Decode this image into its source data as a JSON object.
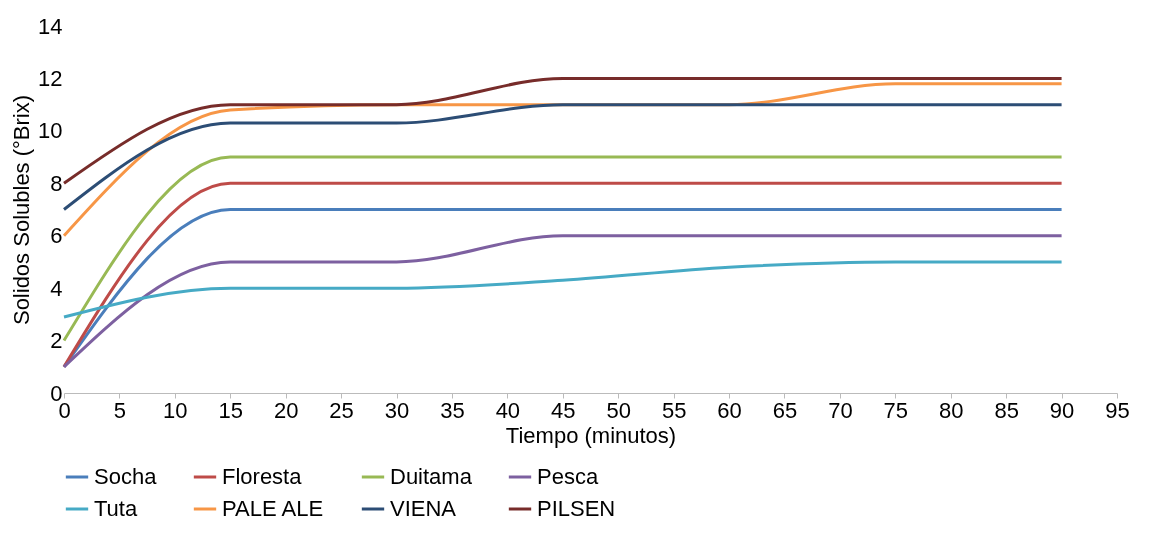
{
  "chart_data": {
    "type": "line",
    "xlabel": "Tiempo (minutos)",
    "ylabel": "Solidos Solubles (°Brix)",
    "x": [
      0,
      15,
      30,
      45,
      60,
      75,
      90
    ],
    "xlim": [
      0,
      95
    ],
    "xticks": [
      0,
      5,
      10,
      15,
      20,
      25,
      30,
      35,
      40,
      45,
      50,
      55,
      60,
      65,
      70,
      75,
      80,
      85,
      90,
      95
    ],
    "ylim": [
      0,
      14
    ],
    "yticks": [
      0,
      2,
      4,
      6,
      8,
      10,
      12,
      14
    ],
    "grid": false,
    "legend": "bottom",
    "marker": "none",
    "line_style": "solid",
    "series": [
      {
        "name": "Socha",
        "color": "#4a7ebb",
        "values": [
          1,
          7,
          7,
          7,
          7,
          7,
          7
        ]
      },
      {
        "name": "Floresta",
        "color": "#be4b48",
        "values": [
          1,
          8,
          8,
          8,
          8,
          8,
          8
        ]
      },
      {
        "name": "Duitama",
        "color": "#98b954",
        "values": [
          2,
          9,
          9,
          9,
          9,
          9,
          9
        ]
      },
      {
        "name": "Pesca",
        "color": "#7d60a0",
        "values": [
          1,
          5,
          5,
          6,
          6,
          6,
          6
        ]
      },
      {
        "name": "Tuta",
        "color": "#46aac5",
        "values": [
          2.9,
          4,
          4,
          4.3,
          4.8,
          5,
          5
        ]
      },
      {
        "name": "PALE ALE",
        "color": "#f79646",
        "values": [
          6,
          10.8,
          11,
          11,
          11,
          11.8,
          11.8
        ]
      },
      {
        "name": "VIENA",
        "color": "#2c4d75",
        "values": [
          7,
          10.3,
          10.3,
          11,
          11,
          11,
          11
        ]
      },
      {
        "name": "PILSEN",
        "color": "#772c2a",
        "values": [
          8,
          11,
          11,
          12,
          12,
          12,
          12
        ]
      }
    ]
  }
}
